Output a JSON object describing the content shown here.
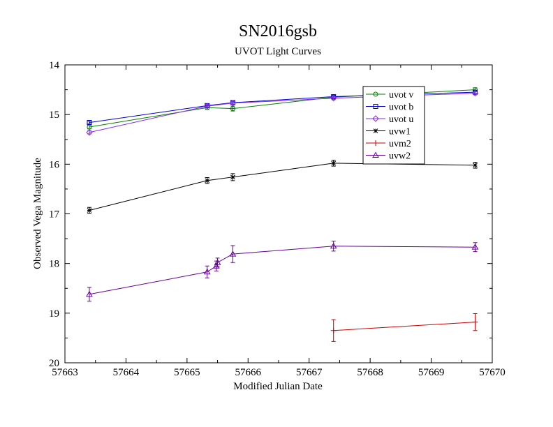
{
  "chart_data": {
    "type": "line",
    "title": "SN2016gsb",
    "subtitle": "UVOT Light Curves",
    "xlabel": "Modified Julian Date",
    "ylabel": "Observed Vega Magnitude",
    "xlim": [
      57663,
      57670
    ],
    "ylim": [
      20,
      14
    ],
    "y_inverted": true,
    "x_ticks": [
      57663,
      57664,
      57665,
      57666,
      57667,
      57668,
      57669,
      57670
    ],
    "x_tick_labels": [
      "57663",
      "57664",
      "57665",
      "57666",
      "57667",
      "57668",
      "57669",
      "57670"
    ],
    "y_ticks": [
      14,
      15,
      16,
      17,
      18,
      19,
      20
    ],
    "y_tick_labels": [
      "14",
      "15",
      "16",
      "17",
      "18",
      "19",
      "20"
    ],
    "grid": false,
    "legend_position": "top-right",
    "series": [
      {
        "name": "uvot v",
        "color": "#008000",
        "marker": "circle",
        "points": [
          {
            "x": 57663.4,
            "y": 15.25,
            "err": 0.04
          },
          {
            "x": 57665.33,
            "y": 14.86,
            "err": 0.04
          },
          {
            "x": 57665.75,
            "y": 14.88,
            "err": 0.05
          },
          {
            "x": 57667.4,
            "y": 14.65,
            "err": 0.04
          },
          {
            "x": 57669.72,
            "y": 14.5,
            "err": 0.04
          }
        ]
      },
      {
        "name": "uvot b",
        "color": "#0000cc",
        "marker": "square",
        "points": [
          {
            "x": 57663.4,
            "y": 15.16,
            "err": 0.03
          },
          {
            "x": 57665.33,
            "y": 14.82,
            "err": 0.03
          },
          {
            "x": 57665.75,
            "y": 14.76,
            "err": 0.03
          },
          {
            "x": 57667.4,
            "y": 14.64,
            "err": 0.03
          },
          {
            "x": 57669.72,
            "y": 14.55,
            "err": 0.03
          }
        ]
      },
      {
        "name": "uvot u",
        "color": "#8a2be2",
        "marker": "diamond",
        "points": [
          {
            "x": 57663.4,
            "y": 15.36,
            "err": 0.03
          },
          {
            "x": 57665.33,
            "y": 14.83,
            "err": 0.03
          },
          {
            "x": 57665.75,
            "y": 14.77,
            "err": 0.03
          },
          {
            "x": 57667.4,
            "y": 14.67,
            "err": 0.03
          },
          {
            "x": 57669.72,
            "y": 14.57,
            "err": 0.03
          }
        ]
      },
      {
        "name": "uvw1",
        "color": "#000000",
        "marker": "star",
        "points": [
          {
            "x": 57663.4,
            "y": 16.93,
            "err": 0.06
          },
          {
            "x": 57665.33,
            "y": 16.33,
            "err": 0.06
          },
          {
            "x": 57665.75,
            "y": 16.26,
            "err": 0.07
          },
          {
            "x": 57667.4,
            "y": 15.98,
            "err": 0.06
          },
          {
            "x": 57669.72,
            "y": 16.02,
            "err": 0.06
          }
        ]
      },
      {
        "name": "uvm2",
        "color": "#cc0000",
        "marker": "plus",
        "points": [
          {
            "x": 57667.4,
            "y": 19.35,
            "err": 0.22
          },
          {
            "x": 57669.72,
            "y": 19.18,
            "err": 0.17
          }
        ]
      },
      {
        "name": "uvw2",
        "color": "#660099",
        "marker": "triangle",
        "points": [
          {
            "x": 57663.4,
            "y": 18.62,
            "err": 0.14
          },
          {
            "x": 57665.33,
            "y": 18.17,
            "err": 0.12
          },
          {
            "x": 57665.48,
            "y": 18.05,
            "err": 0.1
          },
          {
            "x": 57665.5,
            "y": 17.98,
            "err": 0.09
          },
          {
            "x": 57665.75,
            "y": 17.81,
            "err": 0.17
          },
          {
            "x": 57667.4,
            "y": 17.65,
            "err": 0.1
          },
          {
            "x": 57669.72,
            "y": 17.67,
            "err": 0.09
          }
        ]
      }
    ]
  }
}
